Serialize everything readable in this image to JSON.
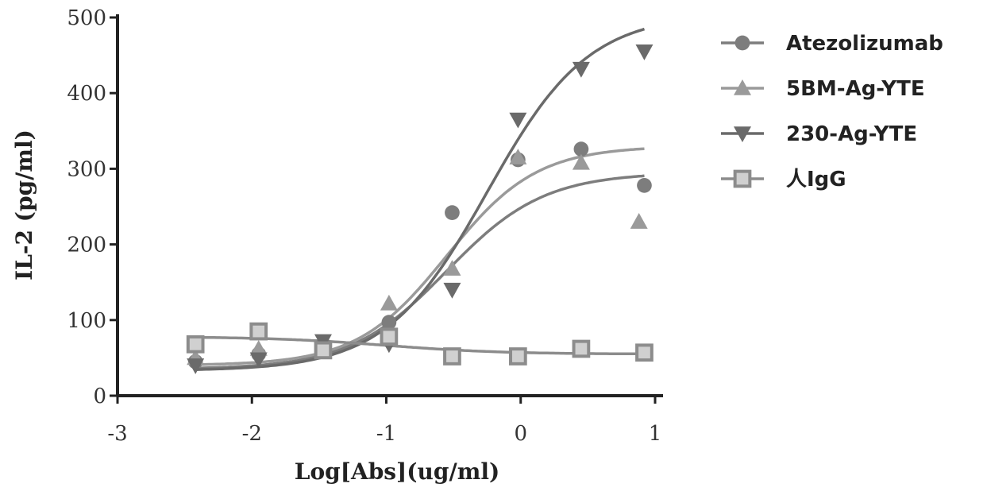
{
  "chart_data": {
    "type": "line",
    "title": "",
    "xlabel": "Log[Abs](ug/ml)",
    "ylabel": "IL-2 (pg/ml)",
    "xlim": [
      -3,
      1.05
    ],
    "ylim": [
      0,
      500
    ],
    "x_ticks": [
      "-3",
      "-2",
      "-1",
      "0",
      "1"
    ],
    "y_ticks": [
      "0",
      "100",
      "200",
      "300",
      "400",
      "500"
    ],
    "legend_position": "right",
    "grid": false,
    "series": [
      {
        "name": "Atezolizumab",
        "marker": "circle",
        "color": "#7d7d7d",
        "x": [
          -2.42,
          -1.95,
          -1.47,
          -0.98,
          -0.51,
          -0.02,
          0.45,
          0.92
        ],
        "y": [
          45,
          55,
          68,
          97,
          242,
          312,
          326,
          278
        ],
        "fit": {
          "bottom": 35,
          "top": 295,
          "logEC50": -0.55,
          "hill": 1.2
        }
      },
      {
        "name": "5BM-Ag-YTE",
        "marker": "triangle-up",
        "color": "#9a9a9a",
        "x": [
          -2.42,
          -1.95,
          -1.47,
          -0.98,
          -0.51,
          -0.02,
          0.45,
          0.88
        ],
        "y": [
          50,
          62,
          65,
          122,
          168,
          315,
          308,
          230
        ],
        "fit": {
          "bottom": 40,
          "top": 330,
          "logEC50": -0.55,
          "hill": 1.3
        }
      },
      {
        "name": "230-Ag-YTE",
        "marker": "triangle-down",
        "color": "#6a6a6a",
        "x": [
          -2.42,
          -1.95,
          -1.47,
          -0.98,
          -0.51,
          -0.02,
          0.45,
          0.92
        ],
        "y": [
          40,
          48,
          72,
          68,
          140,
          365,
          432,
          455
        ],
        "fit": {
          "bottom": 33,
          "top": 505,
          "logEC50": -0.25,
          "hill": 1.15
        }
      },
      {
        "name": "人IgG",
        "marker": "square-open",
        "color": "#8c8c8c",
        "x": [
          -2.42,
          -1.95,
          -1.47,
          -0.98,
          -0.51,
          -0.02,
          0.45,
          0.92
        ],
        "y": [
          68,
          85,
          60,
          78,
          52,
          52,
          62,
          57
        ],
        "fit": {
          "bottom": 55,
          "top": 78,
          "logEC50": -1.0,
          "hill": -1.0
        }
      }
    ]
  }
}
